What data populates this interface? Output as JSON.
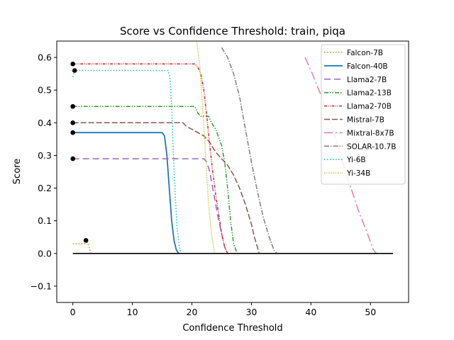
{
  "chart_data": {
    "type": "line",
    "title": "Score vs Confidence Threshold: train, piqa",
    "xlabel": "Confidence Threshold",
    "ylabel": "Score",
    "xlim": [
      -2.7,
      56.4
    ],
    "ylim": [
      -0.15,
      0.65
    ],
    "xticks": [
      0,
      10,
      20,
      30,
      40,
      50
    ],
    "yticks": [
      -0.1,
      0.0,
      0.1,
      0.2,
      0.3,
      0.4,
      0.5,
      0.6
    ],
    "ytick_labels": [
      "−0.1",
      "0.0",
      "0.1",
      "0.2",
      "0.3",
      "0.4",
      "0.5",
      "0.6"
    ],
    "legend_position": "top-right",
    "grid": false,
    "baseline": {
      "x": [
        0,
        53.8
      ],
      "y": 0.0,
      "color": "#000000"
    },
    "series": [
      {
        "name": "Falcon-7B",
        "color": "#ff7f0e",
        "dash": "1.5,2.5",
        "width": 1.5,
        "points": [
          [
            0.0,
            0.03
          ],
          [
            2.0,
            0.03
          ],
          [
            2.3,
            0.04
          ],
          [
            2.6,
            0.03
          ],
          [
            3.0,
            0.0
          ]
        ],
        "start_marker": [
          2.2,
          0.04
        ]
      },
      {
        "name": "Falcon-40B",
        "color": "#1f77b4",
        "dash": "",
        "width": 1.8,
        "points": [
          [
            0.0,
            0.37
          ],
          [
            15.0,
            0.37
          ],
          [
            15.4,
            0.36
          ],
          [
            15.8,
            0.3
          ],
          [
            16.2,
            0.2
          ],
          [
            16.6,
            0.1
          ],
          [
            17.0,
            0.04
          ],
          [
            17.4,
            0.01
          ],
          [
            17.8,
            0.0
          ]
        ],
        "start_marker": [
          0.0,
          0.37
        ]
      },
      {
        "name": "Llama2-7B",
        "color": "#9467bd",
        "dash": "9,5",
        "width": 1.5,
        "points": [
          [
            0.0,
            0.29
          ],
          [
            22.0,
            0.29
          ],
          [
            22.5,
            0.28
          ],
          [
            23.0,
            0.25
          ],
          [
            23.5,
            0.2
          ],
          [
            24.0,
            0.15
          ],
          [
            24.5,
            0.1
          ],
          [
            25.0,
            0.06
          ],
          [
            25.5,
            0.02
          ],
          [
            26.0,
            0.0
          ]
        ],
        "start_marker": [
          0.0,
          0.29
        ]
      },
      {
        "name": "Llama2-13B",
        "color": "#2ca02c",
        "dash": "6,2,1.5,2,1.5,2",
        "width": 1.5,
        "points": [
          [
            0.0,
            0.45
          ],
          [
            20.5,
            0.45
          ],
          [
            21.0,
            0.43
          ],
          [
            21.5,
            0.42
          ],
          [
            22.8,
            0.42
          ],
          [
            23.3,
            0.4
          ],
          [
            24.0,
            0.38
          ],
          [
            25.0,
            0.33
          ],
          [
            25.5,
            0.28
          ],
          [
            26.0,
            0.2
          ],
          [
            26.5,
            0.1
          ],
          [
            27.0,
            0.03
          ],
          [
            27.6,
            0.0
          ]
        ],
        "start_marker": [
          0.0,
          0.45
        ]
      },
      {
        "name": "Llama2-70B",
        "color": "#d62728",
        "dash": "4,1.5,1,1.5,1,1.5",
        "width": 1.5,
        "points": [
          [
            0.0,
            0.58
          ],
          [
            20.5,
            0.58
          ],
          [
            21.0,
            0.57
          ],
          [
            21.5,
            0.55
          ],
          [
            22.0,
            0.5
          ],
          [
            22.5,
            0.42
          ],
          [
            23.0,
            0.33
          ],
          [
            23.5,
            0.25
          ],
          [
            24.0,
            0.18
          ],
          [
            24.5,
            0.12
          ],
          [
            25.0,
            0.06
          ],
          [
            25.5,
            0.02
          ],
          [
            26.0,
            0.0
          ]
        ],
        "start_marker": [
          0.0,
          0.58
        ]
      },
      {
        "name": "Mistral-7B",
        "color": "#8c564b",
        "dash": "8,3",
        "width": 1.5,
        "points": [
          [
            0.0,
            0.4
          ],
          [
            18.5,
            0.4
          ],
          [
            19.0,
            0.39
          ],
          [
            20.0,
            0.38
          ],
          [
            21.0,
            0.37
          ],
          [
            22.0,
            0.36
          ],
          [
            23.0,
            0.34
          ],
          [
            24.0,
            0.31
          ],
          [
            25.0,
            0.29
          ],
          [
            26.0,
            0.27
          ],
          [
            27.0,
            0.24
          ],
          [
            28.0,
            0.2
          ],
          [
            29.0,
            0.15
          ],
          [
            30.0,
            0.09
          ],
          [
            30.5,
            0.05
          ],
          [
            31.0,
            0.02
          ],
          [
            31.3,
            0.0
          ]
        ],
        "start_marker": [
          0.0,
          0.4
        ]
      },
      {
        "name": "Mixtral-8x7B",
        "color": "#e377c2",
        "dash": "12,4,2,4",
        "width": 1.5,
        "points": [
          [
            39.0,
            0.6
          ],
          [
            40.0,
            0.56
          ],
          [
            42.0,
            0.47
          ],
          [
            44.0,
            0.36
          ],
          [
            46.0,
            0.24
          ],
          [
            48.0,
            0.13
          ],
          [
            49.5,
            0.06
          ],
          [
            50.5,
            0.01
          ],
          [
            51.0,
            0.0
          ]
        ],
        "start_marker": null
      },
      {
        "name": "SOLAR-10.7B",
        "color": "#7f7f7f",
        "dash": "7,2,1.5,2",
        "width": 1.5,
        "points": [
          [
            25.0,
            0.63
          ],
          [
            26.0,
            0.6
          ],
          [
            27.0,
            0.55
          ],
          [
            28.0,
            0.48
          ],
          [
            29.0,
            0.38
          ],
          [
            30.0,
            0.28
          ],
          [
            31.0,
            0.19
          ],
          [
            32.0,
            0.11
          ],
          [
            33.0,
            0.05
          ],
          [
            33.8,
            0.01
          ],
          [
            34.3,
            0.0
          ]
        ],
        "start_marker": null
      },
      {
        "name": "Yi-6B",
        "color": "#17becf",
        "dash": "1.5,2.5",
        "width": 1.6,
        "points": [
          [
            0.0,
            0.54
          ],
          [
            0.3,
            0.56
          ],
          [
            16.0,
            0.56
          ],
          [
            16.3,
            0.54
          ],
          [
            16.6,
            0.45
          ],
          [
            16.9,
            0.3
          ],
          [
            17.2,
            0.18
          ],
          [
            17.5,
            0.08
          ],
          [
            17.9,
            0.02
          ],
          [
            18.2,
            0.0
          ]
        ],
        "start_marker": [
          0.3,
          0.56
        ]
      },
      {
        "name": "Yi-34B",
        "color": "#bcbd22",
        "dash": "1,1.5",
        "width": 1.5,
        "points": [
          [
            20.8,
            0.65
          ],
          [
            21.3,
            0.58
          ],
          [
            21.8,
            0.45
          ],
          [
            22.3,
            0.3
          ],
          [
            22.8,
            0.15
          ],
          [
            23.3,
            0.06
          ],
          [
            23.8,
            0.0
          ]
        ],
        "start_marker": null
      }
    ]
  }
}
